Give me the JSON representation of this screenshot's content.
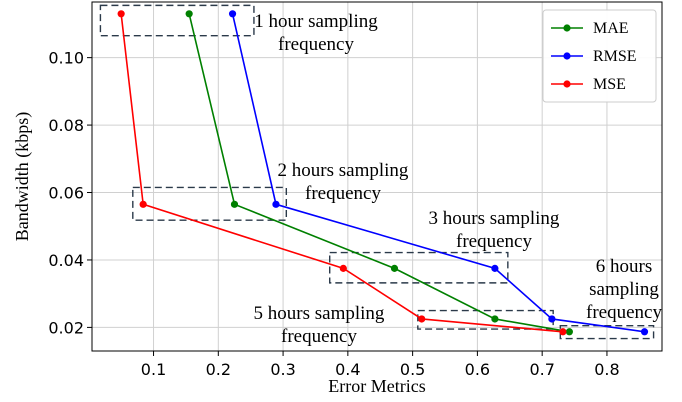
{
  "chart_data": {
    "type": "line",
    "xlabel": "Error Metrics",
    "ylabel": "Bandwidth (kbps)",
    "xlim": [
      0.005,
      0.885
    ],
    "ylim": [
      0.013,
      0.1165
    ],
    "xticks": [
      0.1,
      0.2,
      0.3,
      0.4,
      0.5,
      0.6,
      0.7,
      0.8
    ],
    "yticks": [
      0.02,
      0.04,
      0.06,
      0.08,
      0.1
    ],
    "xtick_labels": [
      "0.1",
      "0.2",
      "0.3",
      "0.4",
      "0.5",
      "0.6",
      "0.7",
      "0.8"
    ],
    "ytick_labels": [
      "0.02",
      "0.04",
      "0.06",
      "0.08",
      "0.10"
    ],
    "grid": true,
    "legend_position": "top-right",
    "series": [
      {
        "name": "MAE",
        "color": "#008000",
        "points": [
          [
            0.155,
            0.113
          ],
          [
            0.225,
            0.0565
          ],
          [
            0.472,
            0.0375
          ],
          [
            0.627,
            0.0225
          ],
          [
            0.742,
            0.0187
          ]
        ]
      },
      {
        "name": "RMSE",
        "color": "#0000ff",
        "points": [
          [
            0.222,
            0.113
          ],
          [
            0.289,
            0.0565
          ],
          [
            0.627,
            0.0375
          ],
          [
            0.715,
            0.0225
          ],
          [
            0.858,
            0.0187
          ]
        ]
      },
      {
        "name": "MSE",
        "color": "#ff0000",
        "points": [
          [
            0.05,
            0.113
          ],
          [
            0.084,
            0.0565
          ],
          [
            0.393,
            0.0375
          ],
          [
            0.514,
            0.0225
          ],
          [
            0.732,
            0.0187
          ]
        ]
      }
    ],
    "annotations": [
      {
        "lines": [
          "1 hour sampling",
          "frequency"
        ],
        "box": {
          "x": [
            0.018,
            0.255
          ],
          "y": [
            0.1065,
            0.1155
          ]
        }
      },
      {
        "lines": [
          "2 hours sampling",
          "frequency"
        ],
        "box": {
          "x": [
            0.068,
            0.305
          ],
          "y": [
            0.0518,
            0.0615
          ]
        }
      },
      {
        "lines": [
          "3 hours sampling",
          "frequency"
        ],
        "box": {
          "x": [
            0.372,
            0.647
          ],
          "y": [
            0.0332,
            0.0422
          ]
        }
      },
      {
        "lines": [
          "5 hours sampling",
          "frequency"
        ],
        "box": {
          "x": [
            0.508,
            0.717
          ],
          "y": [
            0.0195,
            0.025
          ]
        }
      },
      {
        "lines": [
          "6 hours",
          "sampling",
          "frequency"
        ],
        "box": {
          "x": [
            0.728,
            0.872
          ],
          "y": [
            0.0167,
            0.0205
          ]
        }
      }
    ]
  }
}
